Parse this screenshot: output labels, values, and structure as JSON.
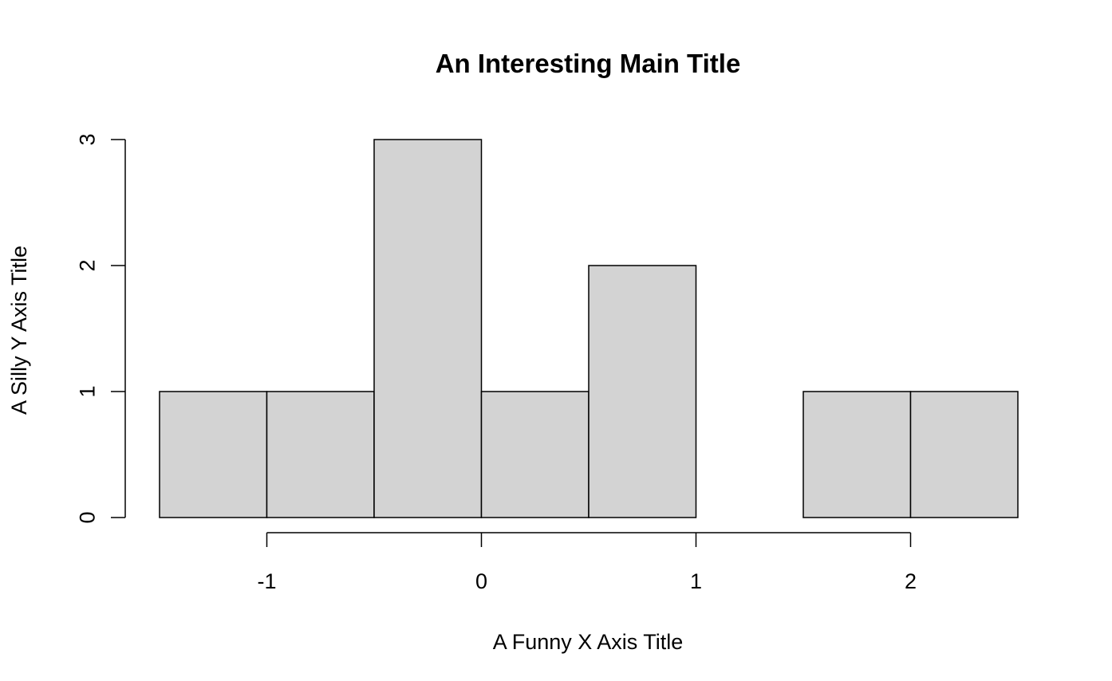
{
  "chart_data": {
    "type": "bar",
    "subtype": "histogram",
    "title": "An Interesting Main Title",
    "xlabel": "A Funny X Axis Title",
    "ylabel": "A Silly Y Axis Title",
    "bins": [
      {
        "x0": -1.5,
        "x1": -1.0,
        "count": 1
      },
      {
        "x0": -1.0,
        "x1": -0.5,
        "count": 1
      },
      {
        "x0": -0.5,
        "x1": 0.0,
        "count": 3
      },
      {
        "x0": 0.0,
        "x1": 0.5,
        "count": 1
      },
      {
        "x0": 0.5,
        "x1": 1.0,
        "count": 2
      },
      {
        "x0": 1.0,
        "x1": 1.5,
        "count": 0
      },
      {
        "x0": 1.5,
        "x1": 2.0,
        "count": 1
      },
      {
        "x0": 2.0,
        "x1": 2.5,
        "count": 1
      }
    ],
    "xticks": [
      -1,
      0,
      1,
      2
    ],
    "xtick_labels": [
      "-1",
      "0",
      "1",
      "2"
    ],
    "yticks": [
      0,
      1,
      2,
      3
    ],
    "ytick_labels": [
      "0",
      "1",
      "2",
      "3"
    ],
    "xlim": [
      -1.5,
      2.5
    ],
    "ylim": [
      0,
      3
    ],
    "grid": false,
    "bar_color": "#d3d3d3",
    "edge_color": "#000000"
  }
}
